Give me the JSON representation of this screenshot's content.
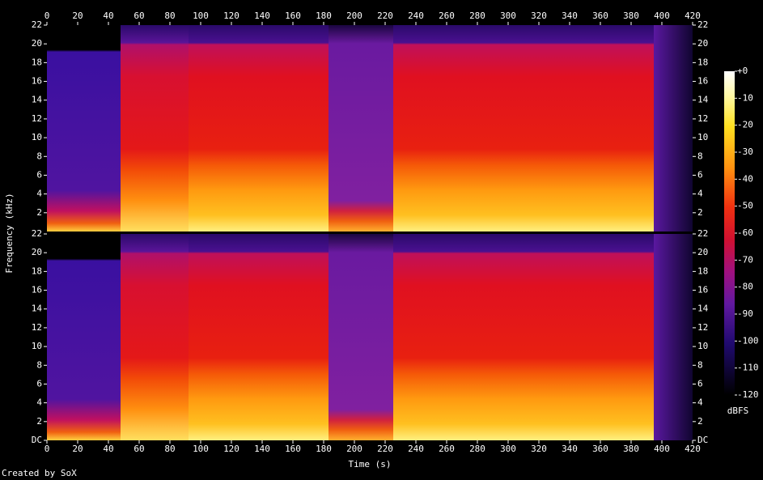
{
  "chart_data": [
    {
      "type": "spectrogram",
      "xlim": [
        0,
        420
      ],
      "xticks": [
        0,
        20,
        40,
        60,
        80,
        100,
        120,
        140,
        160,
        180,
        200,
        220,
        240,
        260,
        280,
        300,
        320,
        340,
        360,
        380,
        400,
        420
      ],
      "ylim": [
        0,
        22
      ],
      "yticks": [
        22,
        20,
        18,
        16,
        14,
        12,
        10,
        8,
        6,
        4,
        2
      ],
      "ylabel": "Frequency (kHz)"
    },
    {
      "type": "spectrogram",
      "xlim": [
        0,
        420
      ],
      "xticks": [
        0,
        20,
        40,
        60,
        80,
        100,
        120,
        140,
        160,
        180,
        200,
        220,
        240,
        260,
        280,
        300,
        320,
        340,
        360,
        380,
        400,
        420
      ],
      "ylim": [
        0,
        22
      ],
      "yticks": [
        {
          "value": 0,
          "label": "DC"
        },
        2,
        4,
        6,
        8,
        10,
        12,
        14,
        16,
        18,
        20,
        22
      ],
      "xlabel": "Time (s)"
    }
  ],
  "colorbar": {
    "label": "dBFS",
    "lim": [
      -120,
      0
    ],
    "ticks": [
      {
        "value": 0,
        "label": "+0"
      },
      -10,
      -20,
      -30,
      -40,
      -50,
      -60,
      -70,
      -80,
      -90,
      -100,
      -110,
      -120
    ]
  },
  "credit": "Created by SoX"
}
